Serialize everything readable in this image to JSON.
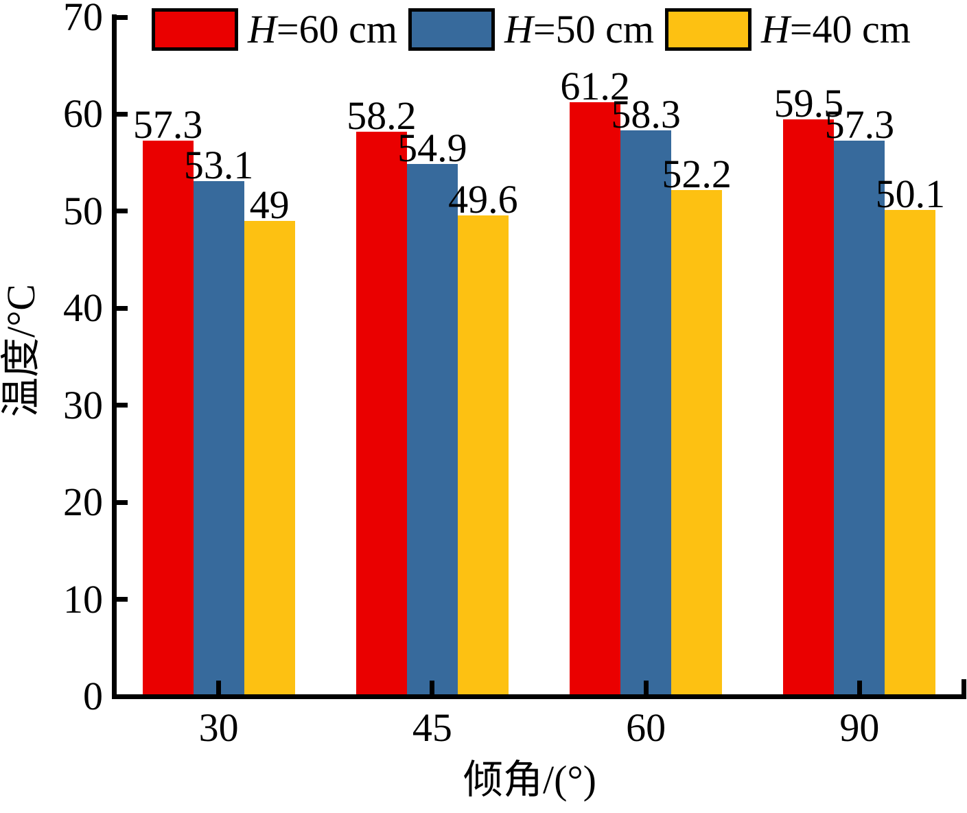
{
  "chart_data": {
    "type": "bar",
    "title": "",
    "xlabel": "倾角/(°)",
    "ylabel": "温度/°C",
    "categories": [
      "30",
      "45",
      "60",
      "90"
    ],
    "series": [
      {
        "name": "H=60 cm",
        "color": "#EA0000",
        "values": [
          57.3,
          58.2,
          61.2,
          59.5
        ]
      },
      {
        "name": "H=50 cm",
        "color": "#376A9C",
        "values": [
          53.1,
          54.9,
          58.3,
          57.3
        ]
      },
      {
        "name": "H=40 cm",
        "color": "#FDC112",
        "values": [
          49,
          49.6,
          52.2,
          50.1
        ]
      }
    ],
    "value_labels": [
      [
        "57.3",
        "58.2",
        "61.2",
        "59.5"
      ],
      [
        "53.1",
        "54.9",
        "58.3",
        "57.3"
      ],
      [
        "49",
        "49.6",
        "52.2",
        "50.1"
      ]
    ],
    "ylim": [
      0,
      70
    ],
    "yticks": [
      "0",
      "10",
      "20",
      "30",
      "40",
      "50",
      "60",
      "70"
    ],
    "grid": false,
    "legend_position": "top",
    "bar_label_position": "above",
    "axis_color": "#000000",
    "text_color": "#000000",
    "background_color": "#FFFFFF"
  }
}
